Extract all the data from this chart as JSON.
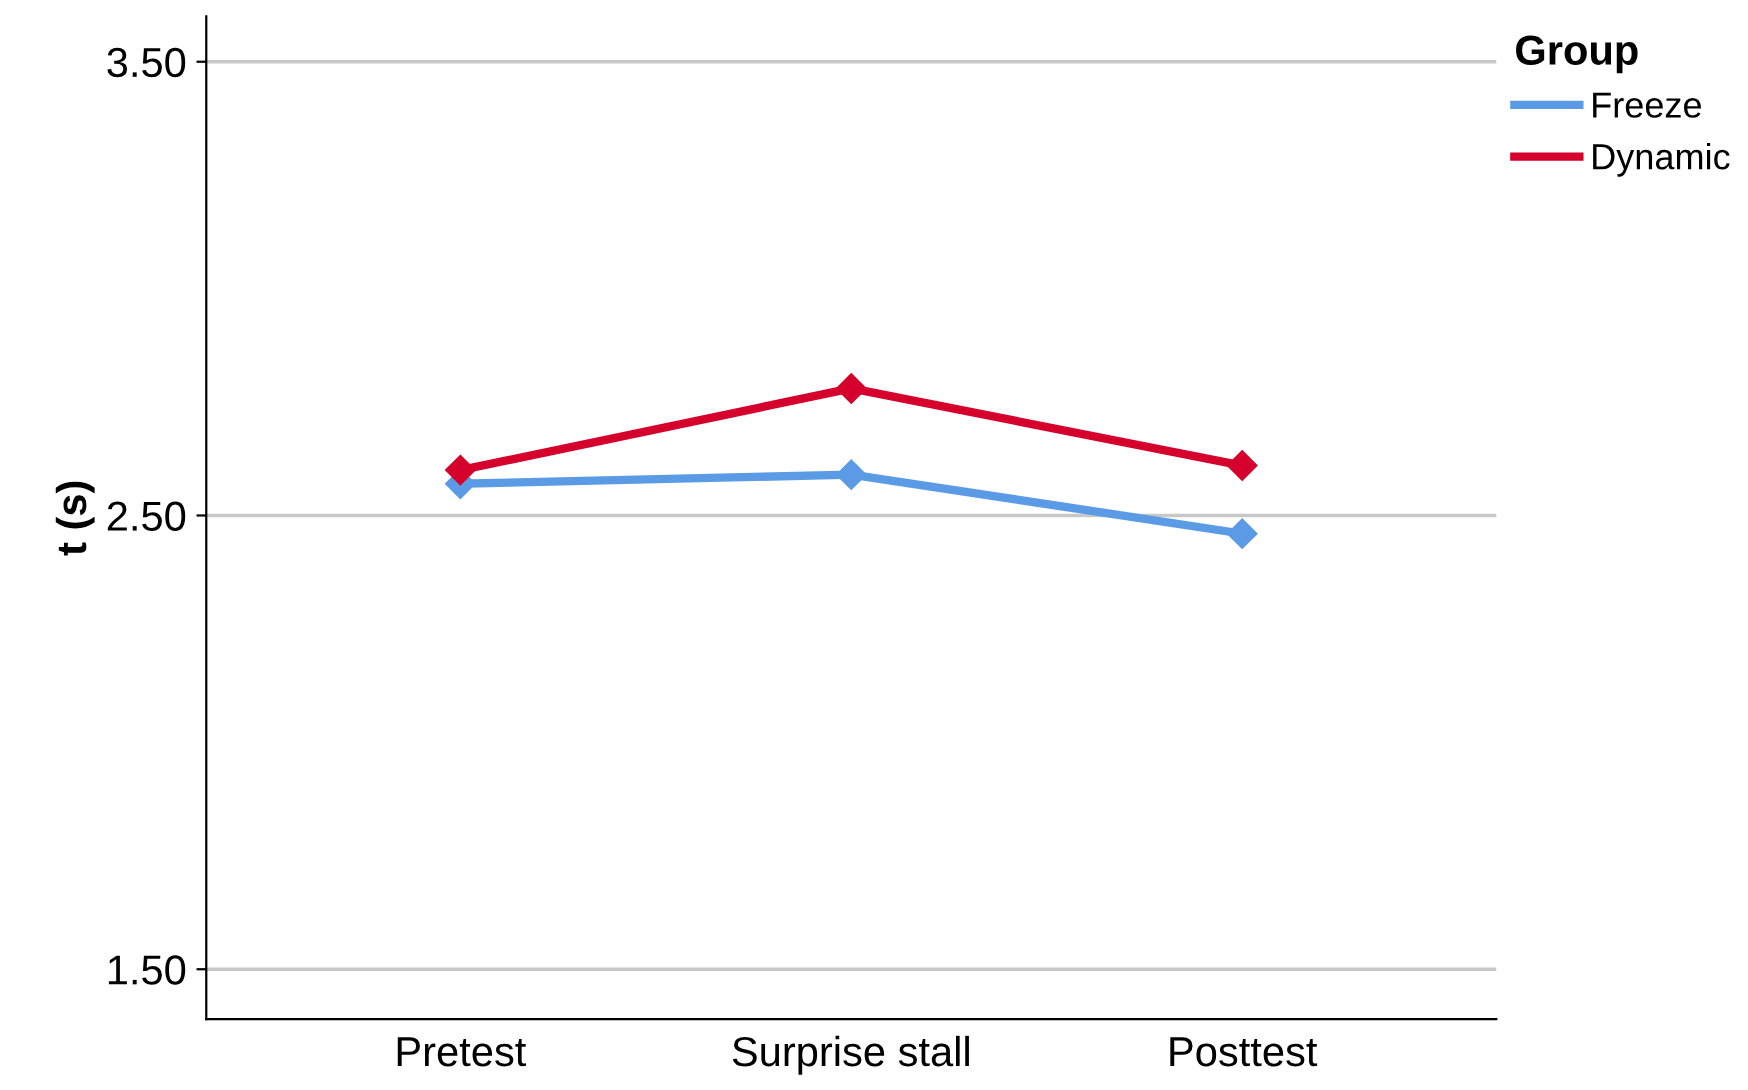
{
  "chart_data": {
    "type": "line",
    "ylabel": "t (s)",
    "legend_title": "Group",
    "categories": [
      "Pretest",
      "Surprise stall",
      "Posttest"
    ],
    "series": [
      {
        "name": "Freeze",
        "color": "#5b9be6",
        "values": [
          2.57,
          2.59,
          2.46
        ]
      },
      {
        "name": "Dynamic",
        "color": "#d5002c",
        "values": [
          2.6,
          2.78,
          2.61
        ]
      }
    ],
    "ylim": [
      1.39,
      3.6
    ],
    "yticks": [
      {
        "value": 1.5,
        "label": "1.50"
      },
      {
        "value": 2.5,
        "label": "2.50"
      },
      {
        "value": 3.5,
        "label": "3.50"
      }
    ],
    "grid": "y",
    "legend": "top right",
    "marker": "diamond",
    "line_style": "solid"
  }
}
